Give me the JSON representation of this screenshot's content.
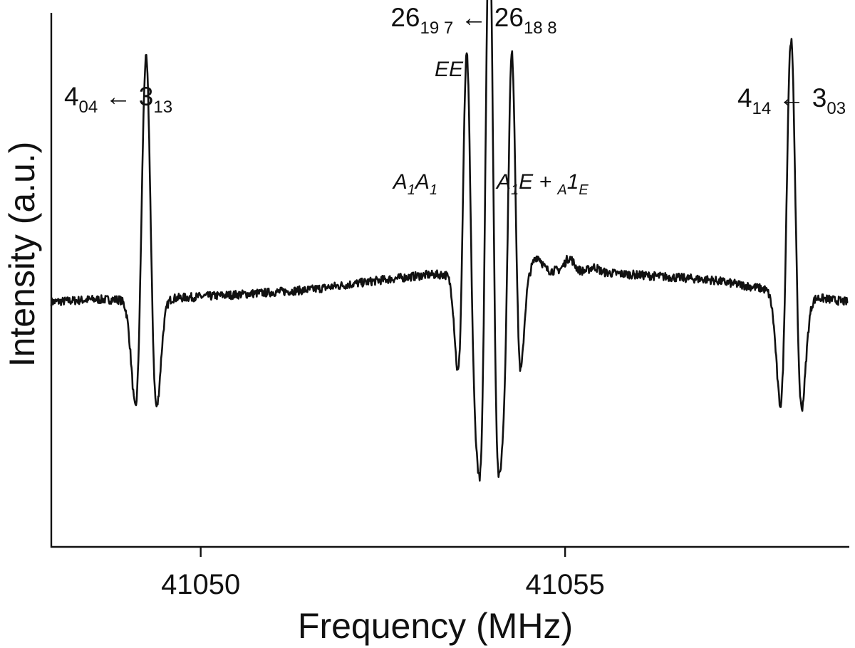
{
  "chart_data": {
    "type": "line",
    "xlabel": "Frequency (MHz)",
    "ylabel": "Intensity (a.u.)",
    "xlim": [
      41047.95,
      41058.88
    ],
    "ylim": [
      -1.0,
      1.16
    ],
    "xticks": [
      41050,
      41055
    ],
    "xtick_labels": [
      "41050",
      "41055"
    ],
    "grid": false,
    "baseline": [
      [
        41047.95,
        -0.01
      ],
      [
        41048.5,
        0.0
      ],
      [
        41049.3,
        0.0
      ],
      [
        41050.5,
        0.02
      ],
      [
        41051.5,
        0.04
      ],
      [
        41052.5,
        0.08
      ],
      [
        41053.1,
        0.1
      ],
      [
        41054.3,
        0.11
      ],
      [
        41055.0,
        0.12
      ],
      [
        41056.0,
        0.1
      ],
      [
        41057.0,
        0.08
      ],
      [
        41057.6,
        0.05
      ],
      [
        41058.4,
        0.01
      ],
      [
        41058.88,
        -0.01
      ]
    ],
    "lines": [
      {
        "center": 41049.25,
        "amplitude": 0.98,
        "offset": 0.0,
        "sigma": 0.085,
        "label_main": [
          "4",
          "04",
          " ← 3",
          "13"
        ]
      },
      {
        "center": 41053.65,
        "amplitude": 0.8,
        "offset": 0.09,
        "sigma": 0.07,
        "label_italic": [
          "A",
          "1",
          "A",
          "1"
        ]
      },
      {
        "center": 41053.96,
        "amplitude": 1.38,
        "offset": 0.09,
        "sigma": 0.07,
        "label_italic": [
          "EE"
        ]
      },
      {
        "center": 41054.27,
        "amplitude": 0.8,
        "offset": 0.09,
        "sigma": 0.07,
        "label_italic": [
          "A",
          "1",
          "E + ",
          "A",
          "1",
          "E"
        ]
      },
      {
        "center": 41058.1,
        "amplitude": 1.01,
        "offset": 0.02,
        "sigma": 0.085,
        "label_main": [
          "4",
          "14",
          " ← 3",
          "03"
        ]
      }
    ],
    "group_label": [
      "26",
      "19 7",
      " ← 26",
      "18 8"
    ],
    "bumps": [
      [
        41054.62,
        0.06
      ],
      [
        41055.06,
        0.05
      ],
      [
        41055.4,
        0.02
      ]
    ]
  }
}
